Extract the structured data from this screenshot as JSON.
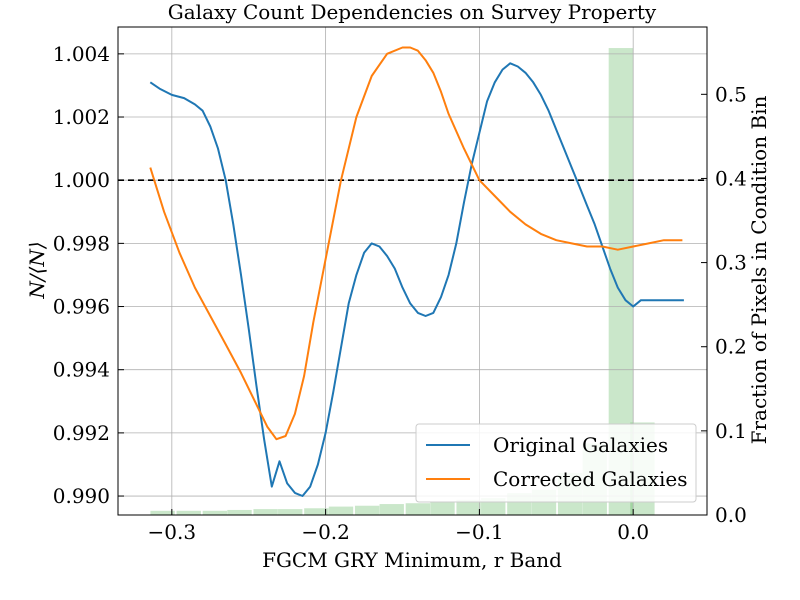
{
  "chart_data": {
    "type": "line",
    "title": "Galaxy Count Dependencies on Survey Property",
    "xlabel": "FGCM GRY Minimum, r Band",
    "ylabel": "N/⟨N⟩",
    "y2label": "Fraction of Pixels in Condition Bin",
    "xlim": [
      -0.335,
      0.048
    ],
    "ylim": [
      0.9894,
      0.9049
    ],
    "ylim_primary": [
      0.9894,
      1.00485
    ],
    "y2lim": [
      0.0,
      0.58
    ],
    "xticks": [
      -0.3,
      -0.2,
      -0.1,
      0.0
    ],
    "xtick_labels": [
      "−0.3",
      "−0.2",
      "−0.1",
      "0.0"
    ],
    "yticks": [
      0.99,
      0.992,
      0.994,
      0.996,
      0.998,
      1.0,
      1.002,
      1.004
    ],
    "ytick_labels": [
      "0.990",
      "0.992",
      "0.994",
      "0.996",
      "0.998",
      "1.000",
      "1.002",
      "1.004"
    ],
    "y2ticks": [
      0.0,
      0.1,
      0.2,
      0.3,
      0.4,
      0.5
    ],
    "y2tick_labels": [
      "0.0",
      "0.1",
      "0.2",
      "0.3",
      "0.4",
      "0.5"
    ],
    "grid": true,
    "reference_line": 1.0,
    "legend_position": "lower-right",
    "series": [
      {
        "name": "Original Galaxies",
        "color": "#1f77b4",
        "x": [
          -0.314,
          -0.308,
          -0.3,
          -0.292,
          -0.285,
          -0.28,
          -0.275,
          -0.27,
          -0.265,
          -0.26,
          -0.255,
          -0.25,
          -0.245,
          -0.24,
          -0.235,
          -0.23,
          -0.225,
          -0.22,
          -0.215,
          -0.21,
          -0.205,
          -0.2,
          -0.195,
          -0.19,
          -0.185,
          -0.18,
          -0.175,
          -0.17,
          -0.165,
          -0.16,
          -0.155,
          -0.15,
          -0.145,
          -0.14,
          -0.135,
          -0.13,
          -0.125,
          -0.12,
          -0.115,
          -0.11,
          -0.105,
          -0.1,
          -0.095,
          -0.09,
          -0.085,
          -0.08,
          -0.075,
          -0.07,
          -0.065,
          -0.06,
          -0.055,
          -0.05,
          -0.045,
          -0.04,
          -0.035,
          -0.03,
          -0.025,
          -0.02,
          -0.015,
          -0.01,
          -0.005,
          0.0,
          0.005,
          0.01,
          0.015,
          0.02,
          0.025,
          0.03,
          0.033
        ],
        "y": [
          1.0031,
          1.0029,
          1.0027,
          1.0026,
          1.0024,
          1.0022,
          1.0017,
          1.001,
          1.0,
          0.9986,
          0.997,
          0.9953,
          0.9935,
          0.9918,
          0.9903,
          0.9911,
          0.9904,
          0.9901,
          0.99,
          0.9903,
          0.991,
          0.992,
          0.9933,
          0.9947,
          0.9961,
          0.997,
          0.9977,
          0.998,
          0.9979,
          0.9976,
          0.9972,
          0.9966,
          0.9961,
          0.9958,
          0.9957,
          0.9958,
          0.9963,
          0.997,
          0.998,
          0.9993,
          1.0005,
          1.0015,
          1.0025,
          1.0031,
          1.0035,
          1.0037,
          1.0036,
          1.0034,
          1.0031,
          1.0027,
          1.0022,
          1.0016,
          1.001,
          1.0004,
          0.9998,
          0.9992,
          0.9986,
          0.9979,
          0.9972,
          0.9966,
          0.9962,
          0.996,
          0.9962,
          0.9962,
          0.9962,
          0.9962,
          0.9962,
          0.9962,
          0.9962
        ]
      },
      {
        "name": "Corrected Galaxies",
        "color": "#ff7f0e",
        "x": [
          -0.314,
          -0.305,
          -0.295,
          -0.285,
          -0.275,
          -0.265,
          -0.255,
          -0.245,
          -0.238,
          -0.232,
          -0.226,
          -0.22,
          -0.214,
          -0.208,
          -0.2,
          -0.19,
          -0.18,
          -0.17,
          -0.16,
          -0.15,
          -0.145,
          -0.14,
          -0.135,
          -0.13,
          -0.125,
          -0.12,
          -0.11,
          -0.1,
          -0.09,
          -0.08,
          -0.07,
          -0.06,
          -0.05,
          -0.04,
          -0.03,
          -0.02,
          -0.01,
          0.0,
          0.01,
          0.02,
          0.032
        ],
        "y": [
          1.0004,
          0.999,
          0.9977,
          0.9966,
          0.9957,
          0.9948,
          0.9939,
          0.9929,
          0.9922,
          0.9918,
          0.9919,
          0.9926,
          0.9938,
          0.9955,
          0.9975,
          1.0,
          1.002,
          1.0033,
          1.004,
          1.0042,
          1.0042,
          1.0041,
          1.0038,
          1.0034,
          1.0028,
          1.0021,
          1.001,
          1.0,
          0.9995,
          0.999,
          0.9986,
          0.9983,
          0.9981,
          0.998,
          0.9979,
          0.9979,
          0.9978,
          0.9979,
          0.998,
          0.9981,
          0.9981
        ]
      }
    ],
    "histogram": {
      "color": "#2ca02c",
      "alpha": 0.25,
      "bin_width": 0.0165,
      "x": [
        -0.306,
        -0.289,
        -0.272,
        -0.256,
        -0.239,
        -0.223,
        -0.206,
        -0.19,
        -0.173,
        -0.157,
        -0.14,
        -0.124,
        -0.107,
        -0.091,
        -0.074,
        -0.058,
        -0.041,
        -0.025,
        -0.008,
        0.006
      ],
      "fraction": [
        0.005,
        0.005,
        0.005,
        0.006,
        0.007,
        0.007,
        0.008,
        0.01,
        0.011,
        0.013,
        0.014,
        0.016,
        0.018,
        0.02,
        0.026,
        0.03,
        0.05,
        0.085,
        0.555,
        0.11
      ]
    }
  }
}
